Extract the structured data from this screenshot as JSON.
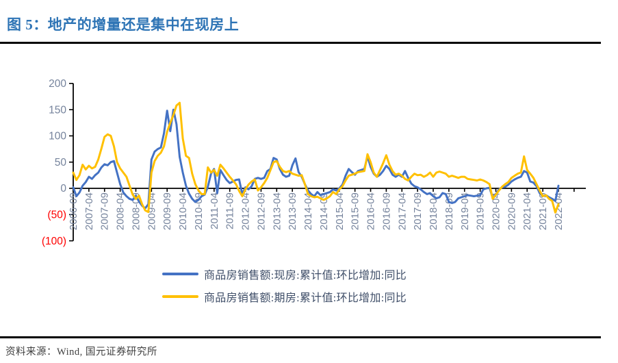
{
  "page": {
    "title": "图 5：地产的增量还是集中在现房上",
    "source": "资料来源：Wind, 国元证券研究所"
  },
  "colors": {
    "title": "#2E74B5",
    "axis_line": "#000000",
    "tick_label": "#75839C",
    "negative_tick_label": "#FF0000",
    "legend_text": "#3F4E68",
    "series_existing_homes": "#4472C4",
    "series_presale_homes": "#FFC000"
  },
  "chart_data": {
    "type": "line",
    "title": "",
    "xlabel": "",
    "ylabel": "",
    "ylim": [
      -100,
      200
    ],
    "grid": false,
    "legend_position": "bottom",
    "y_axis": {
      "ticks": [
        {
          "label": "200",
          "value": 200
        },
        {
          "label": "150",
          "value": 150
        },
        {
          "label": "100",
          "value": 100
        },
        {
          "label": "50",
          "value": 50
        },
        {
          "label": "0",
          "value": 0
        },
        {
          "label": "(50)",
          "value": -50
        },
        {
          "label": "(100)",
          "value": -100
        }
      ]
    },
    "x_axis": {
      "label_rotation": -90,
      "labels": [
        "2006-09",
        "2007-04",
        "2007-09",
        "2008-04",
        "2008-09",
        "2009-04",
        "2009-09",
        "2010-04",
        "2010-09",
        "2011-04",
        "2011-09",
        "2012-04",
        "2012-09",
        "2013-04",
        "2013-09",
        "2014-04",
        "2014-09",
        "2015-04",
        "2015-09",
        "2016-04",
        "2016-09",
        "2017-04",
        "2017-09",
        "2018-04",
        "2018-09",
        "2019-04",
        "2019-09",
        "2020-04",
        "2020-09",
        "2021-04",
        "2021-09",
        "2022-04"
      ]
    },
    "x": [
      "2006-09",
      "2006-10",
      "2006-11",
      "2006-12",
      "2007-03",
      "2007-04",
      "2007-05",
      "2007-06",
      "2007-07",
      "2007-08",
      "2007-09",
      "2007-10",
      "2007-11",
      "2007-12",
      "2008-03",
      "2008-04",
      "2008-05",
      "2008-06",
      "2008-07",
      "2008-08",
      "2008-09",
      "2008-10",
      "2008-11",
      "2008-12",
      "2009-03",
      "2009-04",
      "2009-05",
      "2009-06",
      "2009-07",
      "2009-08",
      "2009-09",
      "2009-10",
      "2009-11",
      "2009-12",
      "2010-03",
      "2010-04",
      "2010-05",
      "2010-06",
      "2010-07",
      "2010-08",
      "2010-09",
      "2010-10",
      "2010-11",
      "2010-12",
      "2011-03",
      "2011-04",
      "2011-05",
      "2011-06",
      "2011-07",
      "2011-08",
      "2011-09",
      "2011-10",
      "2011-11",
      "2011-12",
      "2012-03",
      "2012-04",
      "2012-05",
      "2012-06",
      "2012-07",
      "2012-08",
      "2012-09",
      "2012-10",
      "2012-11",
      "2012-12",
      "2013-03",
      "2013-04",
      "2013-05",
      "2013-06",
      "2013-07",
      "2013-08",
      "2013-09",
      "2013-10",
      "2013-11",
      "2013-12",
      "2014-03",
      "2014-04",
      "2014-05",
      "2014-06",
      "2014-07",
      "2014-08",
      "2014-09",
      "2014-10",
      "2014-11",
      "2014-12",
      "2015-03",
      "2015-04",
      "2015-05",
      "2015-06",
      "2015-07",
      "2015-08",
      "2015-09",
      "2015-10",
      "2015-11",
      "2015-12",
      "2016-03",
      "2016-04",
      "2016-05",
      "2016-06",
      "2016-07",
      "2016-08",
      "2016-09",
      "2016-10",
      "2016-11",
      "2016-12",
      "2017-03",
      "2017-04",
      "2017-05",
      "2017-06",
      "2017-07",
      "2017-08",
      "2017-09",
      "2017-10",
      "2017-11",
      "2017-12",
      "2018-03",
      "2018-04",
      "2018-05",
      "2018-06",
      "2018-07",
      "2018-08",
      "2018-09",
      "2018-10",
      "2018-11",
      "2018-12",
      "2019-03",
      "2019-04",
      "2019-05",
      "2019-06",
      "2019-07",
      "2019-08",
      "2019-09",
      "2019-10",
      "2019-11",
      "2019-12",
      "2020-03",
      "2020-04",
      "2020-05",
      "2020-06",
      "2020-07",
      "2020-08",
      "2020-09",
      "2020-10",
      "2020-11",
      "2020-12",
      "2021-03",
      "2021-04",
      "2021-05",
      "2021-06",
      "2021-07",
      "2021-08",
      "2021-09",
      "2021-10",
      "2021-11",
      "2021-12",
      "2022-03",
      "2022-04"
    ],
    "series": [
      {
        "name": "商品房销售额:现房:累计值:环比增加:同比",
        "color": "#4472C4",
        "values": [
          2,
          -15,
          -8,
          5,
          12,
          22,
          18,
          25,
          30,
          40,
          46,
          44,
          50,
          52,
          30,
          8,
          -8,
          -15,
          -20,
          -22,
          -14,
          -25,
          -33,
          -38,
          -30,
          55,
          70,
          75,
          78,
          105,
          148,
          109,
          150,
          122,
          60,
          30,
          5,
          -10,
          -20,
          -26,
          -22,
          -15,
          -12,
          3,
          28,
          37,
          -9,
          35,
          25,
          16,
          10,
          13,
          16,
          17,
          -11,
          2,
          -2,
          4,
          18,
          20,
          18,
          20,
          33,
          37,
          58,
          55,
          37,
          26,
          22,
          24,
          44,
          57,
          31,
          22,
          8,
          -4,
          -11,
          -15,
          -7,
          -13,
          -11,
          -9,
          -7,
          -2,
          -4,
          0,
          7,
          24,
          37,
          31,
          26,
          33,
          35,
          37,
          61,
          41,
          28,
          22,
          26,
          33,
          43,
          37,
          26,
          22,
          26,
          22,
          33,
          20,
          9,
          4,
          2,
          -2,
          -7,
          -11,
          -9,
          -15,
          -19,
          -17,
          -9,
          -11,
          -26,
          -28,
          -26,
          -19,
          -17,
          -15,
          -13,
          -14,
          -15,
          -14,
          -13,
          -2,
          0,
          1,
          -18,
          -11,
          -2,
          2,
          3,
          7,
          13,
          17,
          20,
          22,
          33,
          30,
          13,
          11,
          4,
          -9,
          -15,
          -13,
          -17,
          -20,
          -24,
          5
        ]
      },
      {
        "name": "商品房销售额:期房:累计值:环比增加:同比",
        "color": "#FFC000",
        "values": [
          30,
          16,
          25,
          45,
          36,
          43,
          38,
          41,
          55,
          76,
          98,
          103,
          100,
          80,
          50,
          38,
          30,
          22,
          5,
          -12,
          -20,
          -14,
          -30,
          -42,
          -45,
          30,
          52,
          62,
          68,
          80,
          108,
          125,
          140,
          158,
          163,
          95,
          62,
          58,
          28,
          8,
          -4,
          -11,
          -11,
          40,
          30,
          35,
          24,
          45,
          38,
          30,
          22,
          15,
          8,
          -5,
          -15,
          -2,
          7,
          13,
          17,
          -4,
          2,
          10,
          20,
          35,
          50,
          52,
          41,
          33,
          31,
          33,
          28,
          26,
          24,
          25,
          8,
          -11,
          -15,
          -17,
          -16,
          -19,
          -22,
          -19,
          -15,
          -7,
          -11,
          -2,
          4,
          15,
          24,
          26,
          28,
          31,
          32,
          33,
          65,
          50,
          30,
          22,
          35,
          48,
          63,
          45,
          33,
          26,
          28,
          24,
          18,
          15,
          22,
          28,
          25,
          26,
          22,
          25,
          30,
          22,
          30,
          32,
          30,
          28,
          22,
          24,
          22,
          20,
          22,
          22,
          18,
          17,
          16,
          15,
          17,
          15,
          12,
          8,
          -20,
          -12,
          -4,
          3,
          8,
          12,
          20,
          24,
          28,
          30,
          61,
          35,
          28,
          20,
          8,
          -4,
          -15,
          -13,
          -20,
          -24,
          -46,
          -30
        ]
      }
    ]
  }
}
